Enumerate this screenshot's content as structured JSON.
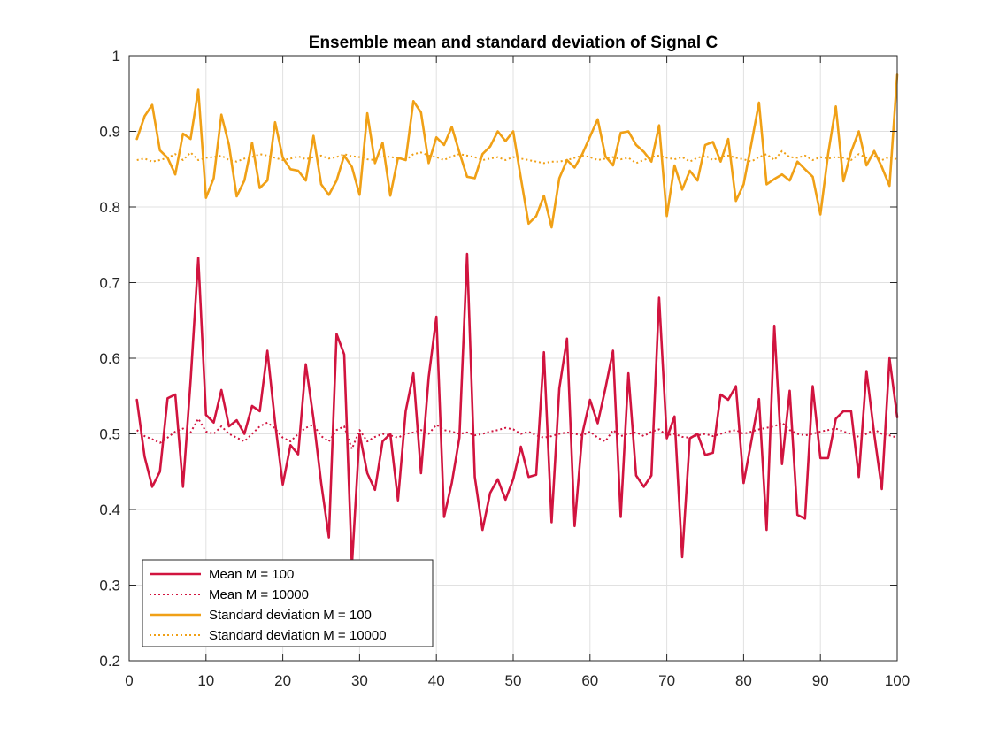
{
  "chart_data": {
    "type": "line",
    "title": "Ensemble mean and standard deviation of Signal C",
    "xlabel": "",
    "ylabel": "",
    "xlim": [
      0,
      100
    ],
    "ylim": [
      0.2,
      1
    ],
    "xticks": [
      0,
      10,
      20,
      30,
      40,
      50,
      60,
      70,
      80,
      90,
      100
    ],
    "yticks": [
      0.2,
      0.3,
      0.4,
      0.5,
      0.6,
      0.7,
      0.8,
      0.9,
      1
    ],
    "xtick_labels": [
      "0",
      "10",
      "20",
      "30",
      "40",
      "50",
      "60",
      "70",
      "80",
      "90",
      "100"
    ],
    "ytick_labels": [
      "0.2",
      "0.3",
      "0.4",
      "0.5",
      "0.6",
      "0.7",
      "0.8",
      "0.9",
      "1"
    ],
    "grid": true,
    "legend_position": "bottom-left",
    "x": [
      1,
      2,
      3,
      4,
      5,
      6,
      7,
      8,
      9,
      10,
      11,
      12,
      13,
      14,
      15,
      16,
      17,
      18,
      19,
      20,
      21,
      22,
      23,
      24,
      25,
      26,
      27,
      28,
      29,
      30,
      31,
      32,
      33,
      34,
      35,
      36,
      37,
      38,
      39,
      40,
      41,
      42,
      43,
      44,
      45,
      46,
      47,
      48,
      49,
      50,
      51,
      52,
      53,
      54,
      55,
      56,
      57,
      58,
      59,
      60,
      61,
      62,
      63,
      64,
      65,
      66,
      67,
      68,
      69,
      70,
      71,
      72,
      73,
      74,
      75,
      76,
      77,
      78,
      79,
      80,
      81,
      82,
      83,
      84,
      85,
      86,
      87,
      88,
      89,
      90,
      91,
      92,
      93,
      94,
      95,
      96,
      97,
      98,
      99,
      100
    ],
    "series": [
      {
        "name": "Mean M = 100",
        "color": "#d1143f",
        "style": "solid",
        "values": [
          0.545,
          0.47,
          0.43,
          0.45,
          0.547,
          0.552,
          0.43,
          0.57,
          0.733,
          0.525,
          0.515,
          0.558,
          0.51,
          0.518,
          0.5,
          0.537,
          0.53,
          0.61,
          0.515,
          0.433,
          0.485,
          0.473,
          0.592,
          0.52,
          0.435,
          0.363,
          0.632,
          0.605,
          0.325,
          0.5,
          0.448,
          0.426,
          0.49,
          0.5,
          0.412,
          0.53,
          0.58,
          0.448,
          0.575,
          0.655,
          0.39,
          0.435,
          0.495,
          0.738,
          0.443,
          0.373,
          0.422,
          0.44,
          0.413,
          0.44,
          0.483,
          0.443,
          0.446,
          0.608,
          0.383,
          0.56,
          0.626,
          0.378,
          0.5,
          0.545,
          0.514,
          0.56,
          0.61,
          0.39,
          0.58,
          0.445,
          0.43,
          0.445,
          0.68,
          0.494,
          0.523,
          0.337,
          0.494,
          0.5,
          0.472,
          0.475,
          0.552,
          0.545,
          0.563,
          0.435,
          0.49,
          0.546,
          0.373,
          0.643,
          0.46,
          0.557,
          0.393,
          0.388,
          0.563,
          0.468,
          0.468,
          0.52,
          0.53,
          0.53,
          0.443,
          0.583,
          0.5,
          0.427,
          0.6,
          0.522
        ]
      },
      {
        "name": "Mean M = 10000",
        "color": "#d1143f",
        "style": "dotted",
        "values": [
          0.505,
          0.497,
          0.493,
          0.488,
          0.495,
          0.503,
          0.507,
          0.502,
          0.52,
          0.503,
          0.5,
          0.51,
          0.5,
          0.495,
          0.49,
          0.5,
          0.51,
          0.515,
          0.507,
          0.495,
          0.49,
          0.5,
          0.508,
          0.512,
          0.497,
          0.49,
          0.505,
          0.51,
          0.48,
          0.505,
          0.49,
          0.496,
          0.5,
          0.498,
          0.495,
          0.5,
          0.502,
          0.505,
          0.5,
          0.512,
          0.505,
          0.503,
          0.5,
          0.502,
          0.498,
          0.5,
          0.503,
          0.505,
          0.508,
          0.506,
          0.5,
          0.503,
          0.498,
          0.495,
          0.497,
          0.5,
          0.502,
          0.5,
          0.498,
          0.503,
          0.495,
          0.49,
          0.505,
          0.497,
          0.5,
          0.502,
          0.497,
          0.503,
          0.506,
          0.498,
          0.5,
          0.496,
          0.495,
          0.498,
          0.5,
          0.497,
          0.5,
          0.503,
          0.505,
          0.5,
          0.503,
          0.506,
          0.508,
          0.51,
          0.515,
          0.505,
          0.5,
          0.498,
          0.5,
          0.503,
          0.505,
          0.507,
          0.503,
          0.5,
          0.496,
          0.5,
          0.506,
          0.5,
          0.498,
          0.495
        ]
      },
      {
        "name": "Standard deviation M = 100",
        "color": "#f0a016",
        "style": "solid",
        "values": [
          0.89,
          0.92,
          0.935,
          0.875,
          0.865,
          0.843,
          0.897,
          0.89,
          0.955,
          0.812,
          0.838,
          0.922,
          0.882,
          0.814,
          0.835,
          0.885,
          0.825,
          0.835,
          0.912,
          0.865,
          0.85,
          0.848,
          0.835,
          0.894,
          0.83,
          0.816,
          0.835,
          0.868,
          0.853,
          0.816,
          0.924,
          0.858,
          0.885,
          0.815,
          0.865,
          0.862,
          0.94,
          0.925,
          0.858,
          0.892,
          0.882,
          0.906,
          0.872,
          0.84,
          0.838,
          0.87,
          0.88,
          0.9,
          0.887,
          0.9,
          0.838,
          0.778,
          0.788,
          0.815,
          0.773,
          0.838,
          0.862,
          0.852,
          0.87,
          0.893,
          0.916,
          0.867,
          0.855,
          0.898,
          0.9,
          0.882,
          0.873,
          0.86,
          0.908,
          0.788,
          0.855,
          0.823,
          0.848,
          0.835,
          0.882,
          0.886,
          0.86,
          0.89,
          0.808,
          0.83,
          0.883,
          0.938,
          0.83,
          0.837,
          0.843,
          0.835,
          0.86,
          0.85,
          0.84,
          0.79,
          0.87,
          0.933,
          0.834,
          0.873,
          0.9,
          0.855,
          0.874,
          0.853,
          0.828,
          0.975
        ]
      },
      {
        "name": "Standard deviation M = 10000",
        "color": "#f0a016",
        "style": "dotted",
        "values": [
          0.862,
          0.864,
          0.86,
          0.862,
          0.865,
          0.87,
          0.862,
          0.872,
          0.862,
          0.865,
          0.866,
          0.868,
          0.862,
          0.86,
          0.864,
          0.866,
          0.87,
          0.868,
          0.865,
          0.862,
          0.864,
          0.867,
          0.863,
          0.866,
          0.868,
          0.864,
          0.866,
          0.87,
          0.867,
          0.866,
          0.863,
          0.862,
          0.868,
          0.866,
          0.865,
          0.862,
          0.87,
          0.872,
          0.868,
          0.866,
          0.862,
          0.867,
          0.87,
          0.868,
          0.866,
          0.862,
          0.864,
          0.866,
          0.862,
          0.866,
          0.864,
          0.862,
          0.86,
          0.858,
          0.86,
          0.86,
          0.862,
          0.865,
          0.868,
          0.866,
          0.862,
          0.864,
          0.866,
          0.863,
          0.865,
          0.858,
          0.862,
          0.866,
          0.868,
          0.865,
          0.863,
          0.866,
          0.86,
          0.865,
          0.868,
          0.862,
          0.866,
          0.868,
          0.865,
          0.863,
          0.86,
          0.866,
          0.87,
          0.862,
          0.874,
          0.866,
          0.865,
          0.868,
          0.862,
          0.866,
          0.864,
          0.866,
          0.865,
          0.862,
          0.87,
          0.865,
          0.867,
          0.862,
          0.866,
          0.863
        ]
      }
    ]
  }
}
